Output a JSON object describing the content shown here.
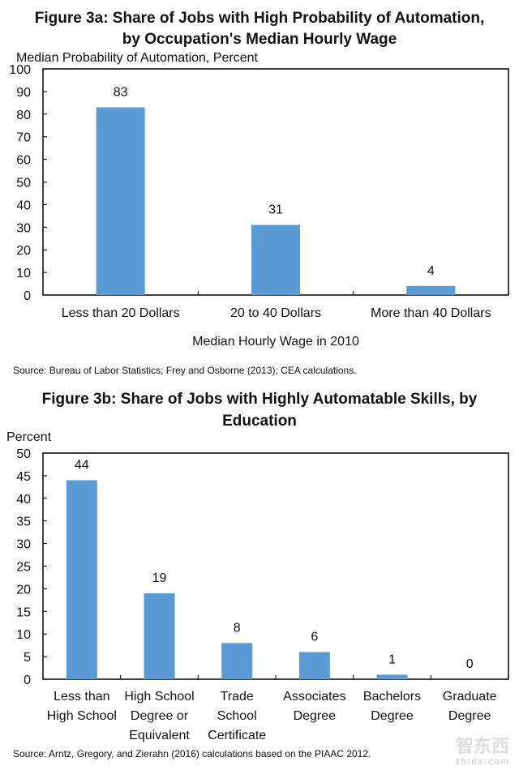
{
  "chart_data": [
    {
      "type": "bar",
      "title": [
        "Figure 3a: Share of Jobs with High Probability of Automation,",
        "by Occupation's Median Hourly Wage"
      ],
      "ylabel": "Median Probability of Automation, Percent",
      "xlabel": "Median Hourly Wage in 2010",
      "categories": [
        [
          "Less than 20 Dollars"
        ],
        [
          "20 to 40 Dollars"
        ],
        [
          "More than 40 Dollars"
        ]
      ],
      "values": [
        83,
        31,
        4
      ],
      "ylim": [
        0,
        100
      ],
      "yticks": [
        0,
        10,
        20,
        30,
        40,
        50,
        60,
        70,
        80,
        90,
        100
      ],
      "grid": false,
      "source": "Source: Bureau of Labor Statistics; Frey and Osborne (2013); CEA calculations."
    },
    {
      "type": "bar",
      "title": [
        "Figure 3b: Share of Jobs with Highly Automatable Skills, by",
        "Education"
      ],
      "ylabel": "Percent",
      "xlabel": "",
      "categories": [
        [
          "Less than",
          "High School"
        ],
        [
          "High School",
          "Degree or",
          "Equivalent"
        ],
        [
          "Trade",
          "School",
          "Certificate"
        ],
        [
          "Associates",
          "Degree"
        ],
        [
          "Bachelors",
          "Degree"
        ],
        [
          "Graduate",
          "Degree"
        ]
      ],
      "values": [
        44,
        19,
        8,
        6,
        1,
        0
      ],
      "ylim": [
        0,
        50
      ],
      "yticks": [
        0,
        5,
        10,
        15,
        20,
        25,
        30,
        35,
        40,
        45,
        50
      ],
      "grid": false,
      "source": "Source: Arntz, Gregory, and Zierahn (2016) calculations based on the PIAAC 2012."
    }
  ],
  "colors": {
    "bar": "#5b9bd5",
    "axis": "#000000"
  },
  "watermark": {
    "cn": "智东西",
    "en": "zhidx.com"
  }
}
